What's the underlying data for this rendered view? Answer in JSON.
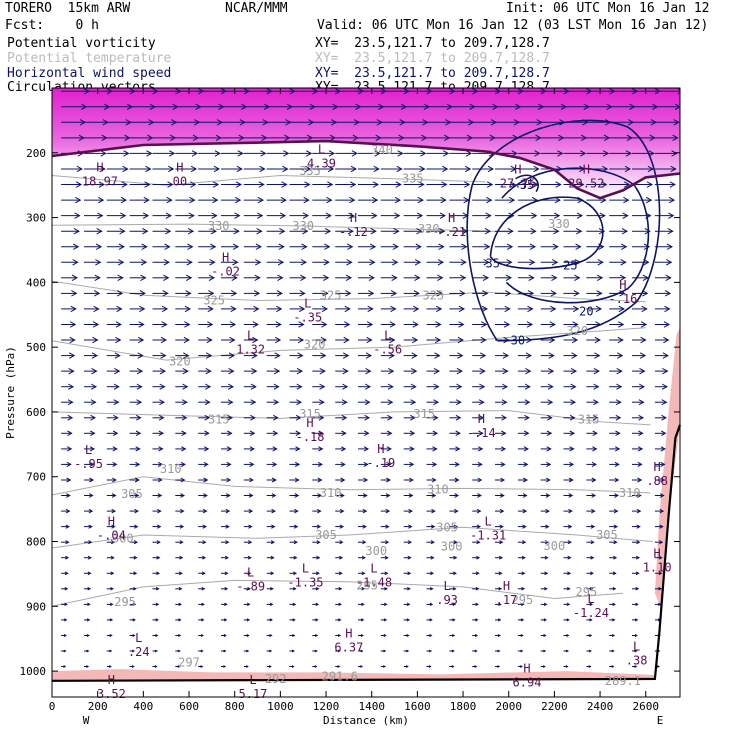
{
  "header": {
    "model": "TORERO  15km ARW",
    "center": "NCAR/MMM",
    "init": "Init: 06 UTC Mon 16 Jan 12",
    "fcst": "Fcst:    0 h",
    "valid": "Valid: 06 UTC Mon 16 Jan 12 (03 LST Mon 16 Jan 12)"
  },
  "legend": [
    {
      "label": "Potential vorticity",
      "xy": "XY=  23.5,121.7 to 209.7,128.7",
      "color": "#000000"
    },
    {
      "label": "Potential temperature",
      "xy": "XY=  23.5,121.7 to 209.7,128.7",
      "color": "#bbbbbb"
    },
    {
      "label": "Horizontal wind speed",
      "xy": "XY=  23.5,121.7 to 209.7,128.7",
      "color": "#0c1464"
    },
    {
      "label": "Circulation vectors",
      "xy": "XY=  23.5,121.7 to 209.7,128.7",
      "color": "#000000"
    }
  ],
  "colors": {
    "pv_fill": "#e020d0",
    "pv_light": "#f5b8b8",
    "pv_contour": "#5a1050",
    "theta": "#aaaaaa",
    "wind": "#0c1464",
    "vectors": "#0c1464",
    "terrain": "#000000"
  },
  "chart_data": {
    "type": "cross-section",
    "xlabel": "Distance (km)",
    "ylabel": "Pressure (hPa)",
    "xlim": [
      0,
      2750
    ],
    "ylim": [
      1040,
      100
    ],
    "xticks": [
      0,
      200,
      400,
      600,
      800,
      1000,
      1200,
      1400,
      1600,
      1800,
      2000,
      2200,
      2400,
      2600
    ],
    "yticks": [
      200,
      300,
      400,
      500,
      600,
      700,
      800,
      900,
      1000
    ],
    "y_scale": "linear",
    "endpoints": {
      "left": "W",
      "right": "E"
    },
    "terrain_surface_hpa": [
      [
        0,
        1015
      ],
      [
        2640,
        1012
      ],
      [
        2660,
        940
      ],
      [
        2700,
        760
      ],
      [
        2730,
        640
      ],
      [
        2750,
        620
      ]
    ],
    "tropopause_pv": [
      [
        0,
        205
      ],
      [
        400,
        188
      ],
      [
        800,
        185
      ],
      [
        1200,
        182
      ],
      [
        1600,
        190
      ],
      [
        1900,
        198
      ],
      [
        2050,
        208
      ],
      [
        2200,
        226
      ],
      [
        2300,
        255
      ],
      [
        2400,
        270
      ],
      [
        2500,
        258
      ],
      [
        2600,
        238
      ],
      [
        2750,
        232
      ]
    ],
    "theta_labels": [
      {
        "x": 1445,
        "p": 196,
        "v": "340"
      },
      {
        "x": 1130,
        "p": 228,
        "v": "335"
      },
      {
        "x": 1580,
        "p": 240,
        "v": "335"
      },
      {
        "x": 730,
        "p": 313,
        "v": "330"
      },
      {
        "x": 1100,
        "p": 313,
        "v": "330"
      },
      {
        "x": 1650,
        "p": 318,
        "v": "330"
      },
      {
        "x": 2220,
        "p": 310,
        "v": "330"
      },
      {
        "x": 710,
        "p": 428,
        "v": "325"
      },
      {
        "x": 1220,
        "p": 420,
        "v": "325"
      },
      {
        "x": 1670,
        "p": 420,
        "v": "325"
      },
      {
        "x": 2300,
        "p": 475,
        "v": "320"
      },
      {
        "x": 1150,
        "p": 496,
        "v": "320"
      },
      {
        "x": 560,
        "p": 522,
        "v": "320"
      },
      {
        "x": 730,
        "p": 612,
        "v": "315"
      },
      {
        "x": 1130,
        "p": 603,
        "v": "315"
      },
      {
        "x": 1630,
        "p": 603,
        "v": "315"
      },
      {
        "x": 2350,
        "p": 612,
        "v": "315"
      },
      {
        "x": 520,
        "p": 688,
        "v": "310"
      },
      {
        "x": 1220,
        "p": 725,
        "v": "310"
      },
      {
        "x": 1690,
        "p": 720,
        "v": "310"
      },
      {
        "x": 2530,
        "p": 725,
        "v": "310"
      },
      {
        "x": 350,
        "p": 727,
        "v": "305"
      },
      {
        "x": 1200,
        "p": 790,
        "v": "305"
      },
      {
        "x": 1730,
        "p": 778,
        "v": "305"
      },
      {
        "x": 2430,
        "p": 790,
        "v": "305"
      },
      {
        "x": 310,
        "p": 795,
        "v": "300"
      },
      {
        "x": 1420,
        "p": 815,
        "v": "300"
      },
      {
        "x": 1750,
        "p": 808,
        "v": "300"
      },
      {
        "x": 2200,
        "p": 807,
        "v": "300"
      },
      {
        "x": 320,
        "p": 893,
        "v": "295"
      },
      {
        "x": 1380,
        "p": 868,
        "v": "295"
      },
      {
        "x": 2060,
        "p": 890,
        "v": "295"
      },
      {
        "x": 2340,
        "p": 878,
        "v": "295"
      },
      {
        "x": 600,
        "p": 987,
        "v": "297"
      },
      {
        "x": 980,
        "p": 1012,
        "v": "292"
      },
      {
        "x": 2500,
        "p": 1015,
        "v": "289.1"
      },
      {
        "x": 1260,
        "p": 1008,
        "v": "291.6"
      }
    ],
    "wind_speed_labels": [
      {
        "x": 2080,
        "p": 250,
        "v": "35"
      },
      {
        "x": 1930,
        "p": 371,
        "v": "35"
      },
      {
        "x": 2270,
        "p": 374,
        "v": "25"
      },
      {
        "x": 2340,
        "p": 445,
        "v": "20"
      },
      {
        "x": 2040,
        "p": 490,
        "v": "30"
      }
    ],
    "pv_extrema": [
      {
        "type": "L",
        "x": 1180,
        "p": 201,
        "v": "4.39"
      },
      {
        "type": "H",
        "x": 210,
        "p": 229,
        "v": "18.97"
      },
      {
        "type": "H",
        "x": 560,
        "p": 229,
        "v": "00"
      },
      {
        "type": "H",
        "x": 2040,
        "p": 232,
        "v": "27.75"
      },
      {
        "type": "H",
        "x": 2340,
        "p": 232,
        "v": "29.52"
      },
      {
        "type": "H",
        "x": 1320,
        "p": 307,
        "v": "-.12"
      },
      {
        "type": "H",
        "x": 1750,
        "p": 307,
        "v": "-.21"
      },
      {
        "type": "H",
        "x": 760,
        "p": 368,
        "v": "-.02"
      },
      {
        "type": "H",
        "x": 2500,
        "p": 410,
        "v": "-.16"
      },
      {
        "type": "L",
        "x": 1120,
        "p": 439,
        "v": "-.35"
      },
      {
        "type": "L",
        "x": 870,
        "p": 488,
        "v": "1.32"
      },
      {
        "type": "L",
        "x": 1470,
        "p": 488,
        "v": "-.56"
      },
      {
        "type": "H",
        "x": 1130,
        "p": 623,
        "v": "-.18"
      },
      {
        "type": "H",
        "x": 1880,
        "p": 617,
        "v": "-.14"
      },
      {
        "type": "H",
        "x": 1440,
        "p": 663,
        "v": "-.19"
      },
      {
        "type": "L",
        "x": 160,
        "p": 665,
        "v": "-.95"
      },
      {
        "type": "H",
        "x": 2650,
        "p": 691,
        "v": ".88"
      },
      {
        "type": "H",
        "x": 2650,
        "p": 825,
        "v": "1.10"
      },
      {
        "type": "H",
        "x": 260,
        "p": 775,
        "v": "-.04"
      },
      {
        "type": "L",
        "x": 1910,
        "p": 775,
        "v": "-1.31"
      },
      {
        "type": "L",
        "x": 870,
        "p": 854,
        "v": "-.89"
      },
      {
        "type": "L",
        "x": 1110,
        "p": 848,
        "v": "-1.35"
      },
      {
        "type": "L",
        "x": 1410,
        "p": 848,
        "v": "-1.48"
      },
      {
        "type": "L",
        "x": 1730,
        "p": 875,
        "v": ".93"
      },
      {
        "type": "H",
        "x": 1990,
        "p": 875,
        "v": ".17"
      },
      {
        "type": "L",
        "x": 2360,
        "p": 895,
        "v": "-1.24"
      },
      {
        "type": "H",
        "x": 1300,
        "p": 948,
        "v": "6.37"
      },
      {
        "type": "L",
        "x": 380,
        "p": 955,
        "v": ".24"
      },
      {
        "type": "L",
        "x": 2560,
        "p": 968,
        "v": ".38"
      },
      {
        "type": "H",
        "x": 2080,
        "p": 1002,
        "v": "6.94"
      },
      {
        "type": "H",
        "x": 260,
        "p": 1020,
        "v": "3.52"
      },
      {
        "type": "L",
        "x": 880,
        "p": 1020,
        "v": "5.17"
      }
    ],
    "vector_row_count": 39
  }
}
